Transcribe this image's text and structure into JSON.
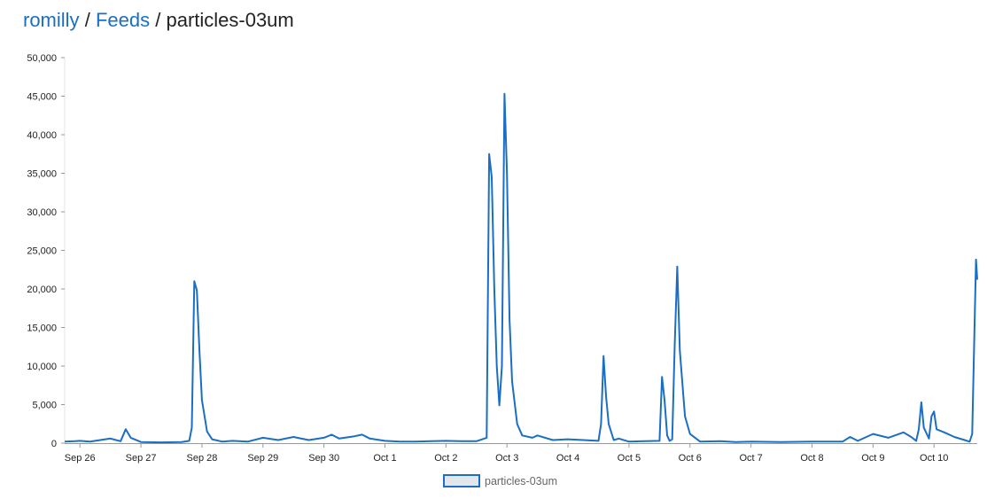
{
  "breadcrumb": {
    "user": "romilly",
    "sep1": "/",
    "feeds": "Feeds",
    "sep2": "/",
    "feed": "particles-03um"
  },
  "colors": {
    "link": "#1a6fc4",
    "line": "#1a6fc4"
  },
  "chart_data": {
    "type": "line",
    "x_unit": "date",
    "ylim": [
      0,
      50000
    ],
    "yticks": [
      "0",
      "5,000",
      "10,000",
      "15,000",
      "20,000",
      "25,000",
      "30,000",
      "35,000",
      "40,000",
      "45,000",
      "50,000"
    ],
    "ytick_values": [
      0,
      5000,
      10000,
      15000,
      20000,
      25000,
      30000,
      35000,
      40000,
      45000,
      50000
    ],
    "xticks": [
      "Sep 26",
      "Sep 27",
      "Sep 28",
      "Sep 29",
      "Sep 30",
      "Oct 1",
      "Oct 2",
      "Oct 3",
      "Oct 4",
      "Oct 5",
      "Oct 6",
      "Oct 7",
      "Oct 8",
      "Oct 9",
      "Oct 10"
    ],
    "grid": false,
    "legend": "bottom-center",
    "series": [
      {
        "name": "particles-03um",
        "points": [
          [
            "Sep 25 18:00",
            200
          ],
          [
            "Sep 25 22:00",
            250
          ],
          [
            "Sep 26 00:00",
            300
          ],
          [
            "Sep 26 04:00",
            200
          ],
          [
            "Sep 26 08:00",
            400
          ],
          [
            "Sep 26 12:00",
            600
          ],
          [
            "Sep 26 16:00",
            250
          ],
          [
            "Sep 26 18:00",
            1800
          ],
          [
            "Sep 26 20:00",
            700
          ],
          [
            "Sep 27 00:00",
            150
          ],
          [
            "Sep 27 08:00",
            100
          ],
          [
            "Sep 27 16:00",
            150
          ],
          [
            "Sep 27 19:00",
            300
          ],
          [
            "Sep 27 20:00",
            2000
          ],
          [
            "Sep 27 21:00",
            21000
          ],
          [
            "Sep 27 22:00",
            19800
          ],
          [
            "Sep 27 23:00",
            12000
          ],
          [
            "Sep 28 00:00",
            5600
          ],
          [
            "Sep 28 02:00",
            1500
          ],
          [
            "Sep 28 04:00",
            500
          ],
          [
            "Sep 28 08:00",
            200
          ],
          [
            "Sep 28 12:00",
            300
          ],
          [
            "Sep 28 18:00",
            200
          ],
          [
            "Sep 29 00:00",
            700
          ],
          [
            "Sep 29 06:00",
            400
          ],
          [
            "Sep 29 12:00",
            800
          ],
          [
            "Sep 29 18:00",
            400
          ],
          [
            "Sep 30 00:00",
            700
          ],
          [
            "Sep 30 03:00",
            1100
          ],
          [
            "Sep 30 06:00",
            600
          ],
          [
            "Sep 30 12:00",
            900
          ],
          [
            "Sep 30 15:00",
            1100
          ],
          [
            "Sep 30 18:00",
            600
          ],
          [
            "Oct 1 00:00",
            300
          ],
          [
            "Oct 1 06:00",
            200
          ],
          [
            "Oct 1 12:00",
            200
          ],
          [
            "Oct 1 18:00",
            250
          ],
          [
            "Oct 2 00:00",
            300
          ],
          [
            "Oct 2 06:00",
            250
          ],
          [
            "Oct 2 12:00",
            250
          ],
          [
            "Oct 2 16:00",
            700
          ],
          [
            "Oct 2 17:00",
            37500
          ],
          [
            "Oct 2 18:00",
            34500
          ],
          [
            "Oct 2 19:00",
            20000
          ],
          [
            "Oct 2 20:00",
            10000
          ],
          [
            "Oct 2 21:00",
            4900
          ],
          [
            "Oct 2 22:00",
            10000
          ],
          [
            "Oct 2 23:00",
            45300
          ],
          [
            "Oct 3 00:00",
            35000
          ],
          [
            "Oct 3 01:00",
            16000
          ],
          [
            "Oct 3 02:00",
            8000
          ],
          [
            "Oct 3 04:00",
            2500
          ],
          [
            "Oct 3 06:00",
            1000
          ],
          [
            "Oct 3 10:00",
            700
          ],
          [
            "Oct 3 12:00",
            1000
          ],
          [
            "Oct 3 18:00",
            400
          ],
          [
            "Oct 4 00:00",
            500
          ],
          [
            "Oct 4 06:00",
            400
          ],
          [
            "Oct 4 12:00",
            300
          ],
          [
            "Oct 4 13:00",
            2500
          ],
          [
            "Oct 4 14:00",
            11300
          ],
          [
            "Oct 4 15:00",
            6000
          ],
          [
            "Oct 4 16:00",
            2500
          ],
          [
            "Oct 4 18:00",
            400
          ],
          [
            "Oct 4 20:00",
            600
          ],
          [
            "Oct 5 00:00",
            200
          ],
          [
            "Oct 5 06:00",
            250
          ],
          [
            "Oct 5 12:00",
            300
          ],
          [
            "Oct 5 13:00",
            8600
          ],
          [
            "Oct 5 14:00",
            5500
          ],
          [
            "Oct 5 15:00",
            1000
          ],
          [
            "Oct 5 16:00",
            300
          ],
          [
            "Oct 5 17:00",
            500
          ],
          [
            "Oct 5 18:00",
            13000
          ],
          [
            "Oct 5 19:00",
            22900
          ],
          [
            "Oct 5 20:00",
            12000
          ],
          [
            "Oct 5 22:00",
            3500
          ],
          [
            "Oct 6 00:00",
            1200
          ],
          [
            "Oct 6 04:00",
            200
          ],
          [
            "Oct 6 12:00",
            250
          ],
          [
            "Oct 6 18:00",
            150
          ],
          [
            "Oct 7 00:00",
            200
          ],
          [
            "Oct 7 12:00",
            150
          ],
          [
            "Oct 8 00:00",
            200
          ],
          [
            "Oct 8 12:00",
            200
          ],
          [
            "Oct 8 15:00",
            800
          ],
          [
            "Oct 8 18:00",
            300
          ],
          [
            "Oct 9 00:00",
            1200
          ],
          [
            "Oct 9 06:00",
            700
          ],
          [
            "Oct 9 12:00",
            1400
          ],
          [
            "Oct 9 15:00",
            800
          ],
          [
            "Oct 9 17:00",
            300
          ],
          [
            "Oct 9 18:00",
            1800
          ],
          [
            "Oct 9 19:00",
            5300
          ],
          [
            "Oct 9 20:00",
            2000
          ],
          [
            "Oct 9 22:00",
            600
          ],
          [
            "Oct 9 23:00",
            3500
          ],
          [
            "Oct 10 00:00",
            4100
          ],
          [
            "Oct 10 01:00",
            1800
          ],
          [
            "Oct 10 04:00",
            1400
          ],
          [
            "Oct 10 08:00",
            800
          ],
          [
            "Oct 10 12:00",
            400
          ],
          [
            "Oct 10 14:00",
            200
          ],
          [
            "Oct 10 15:00",
            1200
          ],
          [
            "Oct 10 16:00",
            16000
          ],
          [
            "Oct 10 16:30",
            23800
          ],
          [
            "Oct 10 17:00",
            21200
          ]
        ]
      }
    ]
  }
}
